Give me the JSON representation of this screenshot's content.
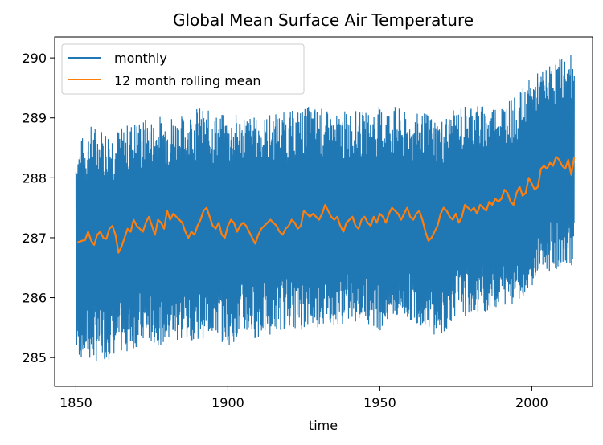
{
  "chart_data": {
    "type": "line",
    "title": "Global Mean Surface Air Temperature",
    "xlabel": "time",
    "ylabel": "",
    "xlim": [
      1843,
      2020
    ],
    "ylim": [
      284.52,
      290.35
    ],
    "xticks": [
      1850,
      1900,
      1950,
      2000
    ],
    "yticks": [
      285,
      286,
      287,
      288,
      289,
      290
    ],
    "grid": false,
    "legend_position": "top-left",
    "colors": {
      "monthly": "#1f77b4",
      "rolling": "#ff7f0e"
    },
    "rolling_mean": {
      "x": [
        1850.5,
        1852,
        1853,
        1854,
        1855,
        1856,
        1857,
        1858,
        1859,
        1860,
        1861,
        1862,
        1863,
        1864,
        1865,
        1866,
        1867,
        1868,
        1869,
        1870,
        1871,
        1872,
        1873,
        1874,
        1875,
        1876,
        1877,
        1878,
        1879,
        1880,
        1881,
        1882,
        1883,
        1884,
        1885,
        1886,
        1887,
        1888,
        1889,
        1890,
        1891,
        1892,
        1893,
        1894,
        1895,
        1896,
        1897,
        1898,
        1899,
        1900,
        1901,
        1902,
        1903,
        1904,
        1905,
        1906,
        1907,
        1908,
        1909,
        1910,
        1911,
        1912,
        1913,
        1914,
        1915,
        1916,
        1917,
        1918,
        1919,
        1920,
        1921,
        1922,
        1923,
        1924,
        1925,
        1926,
        1927,
        1928,
        1929,
        1930,
        1931,
        1932,
        1933,
        1934,
        1935,
        1936,
        1937,
        1938,
        1939,
        1940,
        1941,
        1942,
        1943,
        1944,
        1945,
        1946,
        1947,
        1948,
        1949,
        1950,
        1951,
        1952,
        1953,
        1954,
        1955,
        1956,
        1957,
        1958,
        1959,
        1960,
        1961,
        1962,
        1963,
        1964,
        1965,
        1966,
        1967,
        1968,
        1969,
        1970,
        1971,
        1972,
        1973,
        1974,
        1975,
        1976,
        1977,
        1978,
        1979,
        1980,
        1981,
        1982,
        1983,
        1984,
        1985,
        1986,
        1987,
        1988,
        1989,
        1990,
        1991,
        1992,
        1993,
        1994,
        1995,
        1996,
        1997,
        1998,
        1999,
        2000,
        2001,
        2002,
        2003,
        2004,
        2005,
        2006,
        2007,
        2008,
        2009,
        2010,
        2011,
        2012,
        2013,
        2014
      ],
      "y": [
        286.92,
        286.95,
        286.96,
        287.1,
        286.95,
        286.88,
        287.05,
        287.1,
        287.0,
        286.98,
        287.15,
        287.2,
        287.05,
        286.75,
        286.85,
        287.0,
        287.15,
        287.1,
        287.3,
        287.2,
        287.15,
        287.1,
        287.25,
        287.35,
        287.2,
        287.05,
        287.3,
        287.25,
        287.15,
        287.45,
        287.3,
        287.4,
        287.35,
        287.3,
        287.25,
        287.1,
        287.0,
        287.1,
        287.05,
        287.2,
        287.3,
        287.45,
        287.5,
        287.35,
        287.2,
        287.15,
        287.25,
        287.05,
        287.0,
        287.2,
        287.3,
        287.25,
        287.1,
        287.2,
        287.25,
        287.2,
        287.1,
        287.0,
        286.9,
        287.05,
        287.15,
        287.2,
        287.25,
        287.3,
        287.25,
        287.2,
        287.1,
        287.05,
        287.15,
        287.2,
        287.3,
        287.25,
        287.15,
        287.2,
        287.45,
        287.4,
        287.35,
        287.4,
        287.35,
        287.3,
        287.4,
        287.55,
        287.45,
        287.35,
        287.3,
        287.35,
        287.2,
        287.1,
        287.25,
        287.3,
        287.35,
        287.2,
        287.15,
        287.3,
        287.35,
        287.25,
        287.2,
        287.35,
        287.25,
        287.4,
        287.35,
        287.25,
        287.4,
        287.5,
        287.45,
        287.4,
        287.3,
        287.4,
        287.5,
        287.35,
        287.3,
        287.4,
        287.45,
        287.3,
        287.1,
        286.95,
        287.0,
        287.1,
        287.2,
        287.4,
        287.5,
        287.45,
        287.35,
        287.3,
        287.4,
        287.25,
        287.35,
        287.55,
        287.5,
        287.45,
        287.5,
        287.4,
        287.55,
        287.5,
        287.45,
        287.6,
        287.55,
        287.65,
        287.6,
        287.65,
        287.8,
        287.75,
        287.6,
        287.55,
        287.75,
        287.85,
        287.7,
        287.75,
        288.0,
        287.9,
        287.8,
        287.85,
        288.15,
        288.2,
        288.15,
        288.25,
        288.2,
        288.35,
        288.3,
        288.2,
        288.15,
        288.3,
        288.05,
        288.35
      ]
    },
    "monthly_envelope": {
      "x": [
        1850,
        1855,
        1860,
        1865,
        1870,
        1875,
        1880,
        1885,
        1890,
        1895,
        1900,
        1905,
        1910,
        1915,
        1920,
        1925,
        1930,
        1935,
        1940,
        1945,
        1950,
        1955,
        1960,
        1965,
        1970,
        1975,
        1980,
        1985,
        1990,
        1995,
        2000,
        2005,
        2010,
        2014
      ],
      "max": [
        288.55,
        288.9,
        288.85,
        288.85,
        289.0,
        289.0,
        289.1,
        289.05,
        289.2,
        289.1,
        289.05,
        289.1,
        289.0,
        289.1,
        289.1,
        289.2,
        289.2,
        289.05,
        289.15,
        289.1,
        289.2,
        289.2,
        289.05,
        289.1,
        289.0,
        289.15,
        289.3,
        289.2,
        289.3,
        289.35,
        289.7,
        289.85,
        290.05,
        290.05
      ],
      "min": [
        285.0,
        284.9,
        284.95,
        285.05,
        285.15,
        285.2,
        285.2,
        285.25,
        285.3,
        285.35,
        285.2,
        285.35,
        285.3,
        285.4,
        285.5,
        285.45,
        285.5,
        285.55,
        285.55,
        285.6,
        285.45,
        285.6,
        285.6,
        285.5,
        285.3,
        285.7,
        285.7,
        285.75,
        285.85,
        285.9,
        286.2,
        286.4,
        286.5,
        286.55
      ]
    },
    "series": [
      {
        "name": "monthly"
      },
      {
        "name": "12 month rolling mean"
      }
    ]
  }
}
